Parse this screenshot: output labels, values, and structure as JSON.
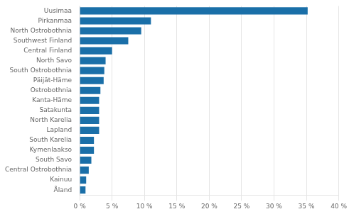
{
  "chart_data": {
    "type": "bar",
    "orientation": "horizontal",
    "categories": [
      "Uusimaa",
      "Pirkanmaa",
      "North Ostrobothnia",
      "Southwest Finland",
      "Central Finland",
      "North Savo",
      "South Ostrobothnia",
      "Päijät-Häme",
      "Ostrobothnia",
      "Kanta-Häme",
      "Satakunta",
      "North Karelia",
      "Lapland",
      "South Karelia",
      "Kymenlaakso",
      "South Savo",
      "Central Ostrobothnia",
      "Kainuu",
      "Åland"
    ],
    "values": [
      35.2,
      11.0,
      9.5,
      7.5,
      5.0,
      4.0,
      3.8,
      3.7,
      3.2,
      3.0,
      3.0,
      3.0,
      3.0,
      2.2,
      2.2,
      1.8,
      1.4,
      1.0,
      0.9
    ],
    "color": "#1a6fa8",
    "xlim": [
      0,
      40
    ],
    "xticks": [
      {
        "value": 0,
        "label": "0 %"
      },
      {
        "value": 5,
        "label": "5 %"
      },
      {
        "value": 10,
        "label": "10 %"
      },
      {
        "value": 15,
        "label": "15 %"
      },
      {
        "value": 20,
        "label": "20 %"
      },
      {
        "value": 25,
        "label": "25 %"
      },
      {
        "value": 30,
        "label": "30 %"
      },
      {
        "value": 35,
        "label": "35 %"
      },
      {
        "value": 40,
        "label": "40 %"
      }
    ],
    "grid": true
  }
}
